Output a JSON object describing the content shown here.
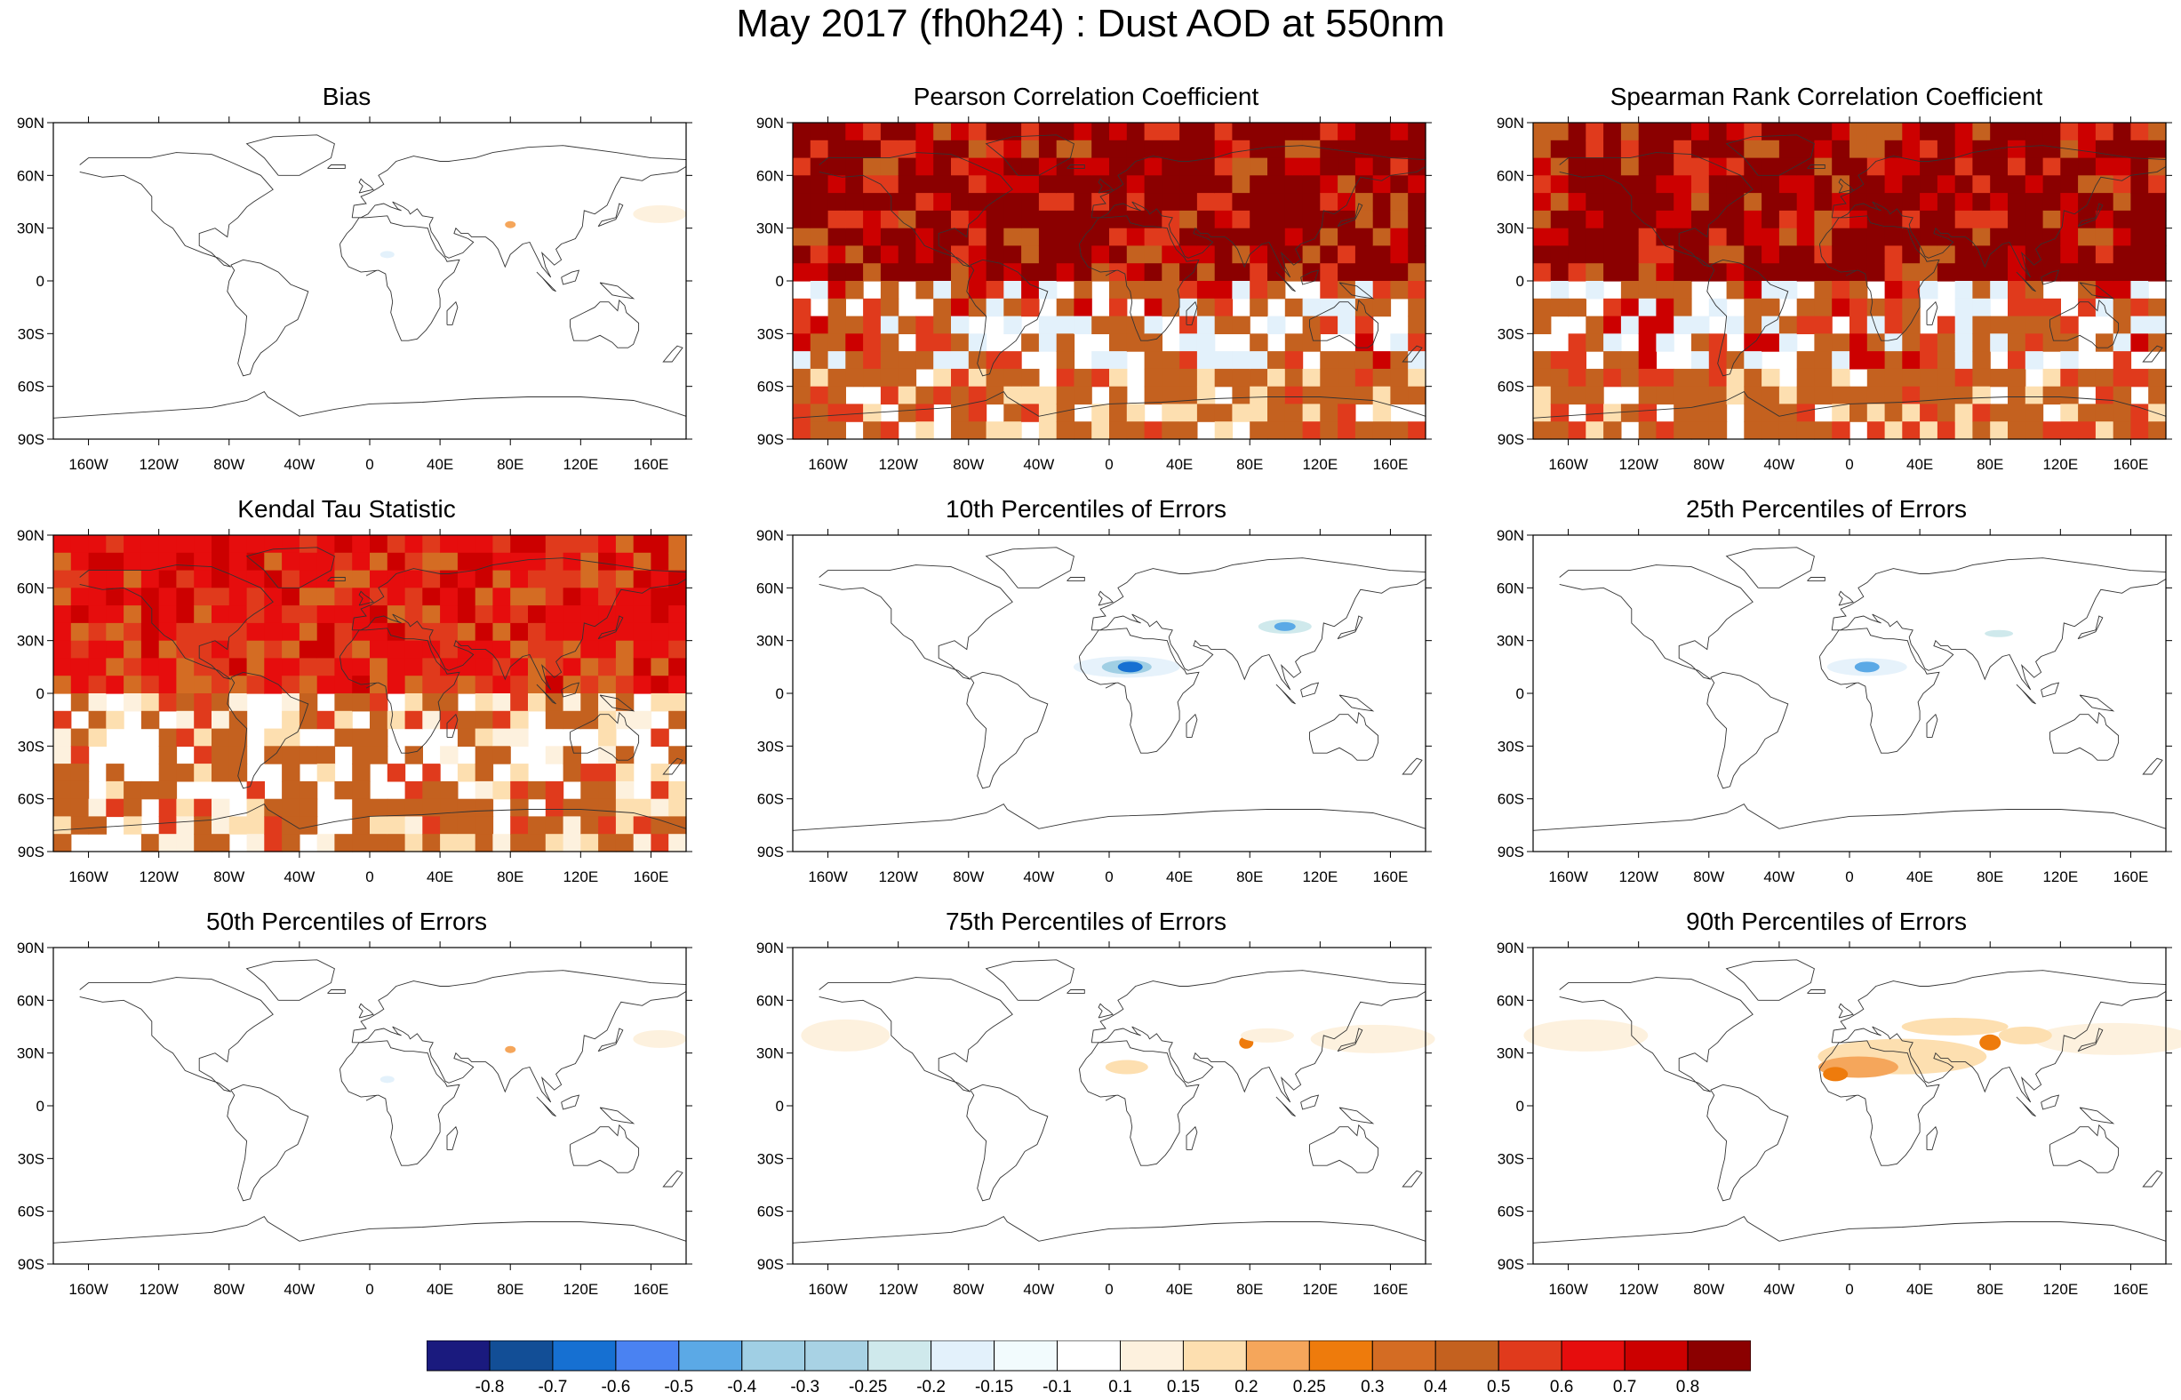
{
  "title": "May 2017 (fh0h24) : Dust AOD at 550nm",
  "lat_labels": [
    "90N",
    "60N",
    "30N",
    "0",
    "30S",
    "60S",
    "90S"
  ],
  "lon_labels": [
    "160W",
    "120W",
    "80W",
    "40W",
    "0",
    "40E",
    "80E",
    "120E",
    "160E"
  ],
  "panels": [
    {
      "title": "Bias",
      "pattern": "sparse"
    },
    {
      "title": "Pearson Correlation Coefficient",
      "pattern": "corr"
    },
    {
      "title": "Spearman Rank Correlation Coefficient",
      "pattern": "corr"
    },
    {
      "title": "Kendal Tau Statistic",
      "pattern": "tau"
    },
    {
      "title": "10th Percentiles of Errors",
      "pattern": "p10"
    },
    {
      "title": "25th Percentiles of Errors",
      "pattern": "p25"
    },
    {
      "title": "50th Percentiles of Errors",
      "pattern": "sparse"
    },
    {
      "title": "75th Percentiles of Errors",
      "pattern": "p75"
    },
    {
      "title": "90th Percentiles of Errors",
      "pattern": "p90"
    }
  ],
  "colorbar": {
    "colors": [
      "#1a1a7e",
      "#124e96",
      "#1670d2",
      "#4a82f2",
      "#5ba9e6",
      "#a0cfe4",
      "#a8d2e4",
      "#cfe9ec",
      "#e3f1fb",
      "#f2fbfd",
      "#ffffff",
      "#fdf1de",
      "#fddfb0",
      "#f5a65b",
      "#ee7b0c",
      "#d46c23",
      "#c4611f",
      "#e03a1c",
      "#e60d0d",
      "#cc0000",
      "#8b0000"
    ],
    "labels": [
      "-0.8",
      "-0.7",
      "-0.6",
      "-0.5",
      "-0.4",
      "-0.3",
      "-0.25",
      "-0.2",
      "-0.15",
      "-0.1",
      "0.1",
      "0.15",
      "0.2",
      "0.25",
      "0.3",
      "0.4",
      "0.5",
      "0.6",
      "0.7",
      "0.8"
    ]
  }
}
